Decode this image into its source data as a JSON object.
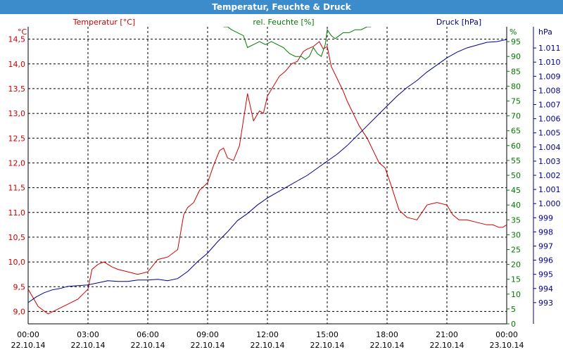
{
  "window": {
    "title": "Temperatur, Feuchte & Druck"
  },
  "colors": {
    "temperature": "#cc0000",
    "humidity": "#007a00",
    "pressure": "#00008c",
    "title_bar": "#3c8ccc"
  },
  "chart_data": {
    "type": "line",
    "grid": true,
    "x_tick_labels": [
      [
        "00:00",
        "22.10.14"
      ],
      [
        "03:00",
        "22.10.14"
      ],
      [
        "06:00",
        "22.10.14"
      ],
      [
        "09:00",
        "22.10.14"
      ],
      [
        "12:00",
        "22.10.14"
      ],
      [
        "15:00",
        "22.10.14"
      ],
      [
        "18:00",
        "22.10.14"
      ],
      [
        "21:00",
        "22.10.14"
      ],
      [
        "00:00",
        "23.10.14"
      ]
    ],
    "x_range_hours": [
      0,
      24
    ],
    "axes": {
      "temperature": {
        "label": "Temperatur [°C]",
        "unit": "°C",
        "ylim": [
          8.75,
          14.75
        ],
        "ticks": [
          "9,0",
          "9,5",
          "10,0",
          "10,5",
          "11,0",
          "11,5",
          "12,0",
          "12,5",
          "13,0",
          "13,5",
          "14,0",
          "14,5"
        ],
        "tick_values": [
          9.0,
          9.5,
          10.0,
          10.5,
          11.0,
          11.5,
          12.0,
          12.5,
          13.0,
          13.5,
          14.0,
          14.5
        ]
      },
      "humidity": {
        "label": "rel. Feuchte [%]",
        "unit": "%",
        "ylim": [
          0,
          100
        ],
        "ticks": [
          "0",
          "5",
          "10",
          "15",
          "20",
          "25",
          "30",
          "35",
          "40",
          "45",
          "50",
          "55",
          "60",
          "65",
          "70",
          "75",
          "80",
          "85",
          "90",
          "95"
        ],
        "tick_values": [
          0,
          5,
          10,
          15,
          20,
          25,
          30,
          35,
          40,
          45,
          50,
          55,
          60,
          65,
          70,
          75,
          80,
          85,
          90,
          95
        ]
      },
      "pressure": {
        "label": "Druck [hPa]",
        "unit": "hPa",
        "ylim": [
          991.5,
          1012.5
        ],
        "ticks": [
          "993",
          "994",
          "995",
          "996",
          "997",
          "998",
          "999",
          "1.000",
          "1.001",
          "1.002",
          "1.003",
          "1.004",
          "1.005",
          "1.006",
          "1.007",
          "1.008",
          "1.009",
          "1.010",
          "1.011"
        ],
        "tick_values": [
          993,
          994,
          995,
          996,
          997,
          998,
          999,
          1000,
          1001,
          1002,
          1003,
          1004,
          1005,
          1006,
          1007,
          1008,
          1009,
          1010,
          1011
        ]
      }
    },
    "series": [
      {
        "name": "Temperatur [°C]",
        "axis": "temperature",
        "x": [
          0,
          0.5,
          1,
          1.5,
          2,
          2.5,
          3,
          3.2,
          3.5,
          3.8,
          4,
          4.2,
          4.5,
          5,
          5.5,
          6,
          6.5,
          7,
          7.5,
          7.8,
          8,
          8.3,
          8.6,
          9,
          9.3,
          9.6,
          9.8,
          10,
          10.3,
          10.6,
          11,
          11.3,
          11.6,
          11.8,
          12,
          12.3,
          12.6,
          12.9,
          13.2,
          13.5,
          13.8,
          14,
          14.3,
          14.6,
          14.8,
          15,
          15.2,
          15.5,
          15.8,
          16,
          16.3,
          16.6,
          17,
          17.3,
          17.6,
          17.9,
          18.2,
          18.6,
          19,
          19.5,
          20,
          20.5,
          21,
          21.3,
          21.6,
          22,
          22.5,
          23,
          23.3,
          23.6,
          23.8,
          24
        ],
        "values": [
          9.45,
          9.1,
          8.95,
          9.05,
          9.15,
          9.25,
          9.45,
          9.85,
          9.95,
          10.0,
          9.95,
          9.9,
          9.85,
          9.8,
          9.75,
          9.8,
          10.05,
          10.1,
          10.25,
          10.95,
          11.1,
          11.2,
          11.45,
          11.6,
          11.95,
          12.25,
          12.3,
          12.1,
          12.05,
          12.35,
          13.4,
          12.85,
          13.05,
          13.0,
          13.35,
          13.55,
          13.75,
          13.85,
          14.0,
          14.05,
          14.25,
          14.3,
          14.35,
          14.45,
          14.3,
          14.35,
          13.95,
          13.7,
          13.45,
          13.25,
          13.0,
          12.75,
          12.5,
          12.25,
          12.0,
          11.9,
          11.55,
          11.05,
          10.9,
          10.85,
          11.15,
          11.2,
          11.15,
          10.95,
          10.85,
          10.85,
          10.8,
          10.75,
          10.75,
          10.7,
          10.7,
          10.75
        ]
      },
      {
        "name": "rel. Feuchte [%]",
        "axis": "humidity",
        "x": [
          9.8,
          10,
          10.2,
          10.5,
          10.8,
          11,
          11.3,
          11.6,
          11.9,
          12.2,
          12.5,
          12.8,
          13.1,
          13.4,
          13.7,
          13.9,
          14.1,
          14.3,
          14.5,
          14.7,
          14.9,
          15,
          15.2,
          15.4,
          15.6,
          15.8,
          16.1,
          16.4,
          16.7,
          17,
          17.2
        ],
        "values": [
          100,
          100,
          99,
          98,
          97,
          93,
          94,
          95,
          94,
          95,
          94,
          93,
          91,
          90,
          90,
          89,
          90,
          93,
          91,
          90,
          94,
          99,
          97,
          96,
          97,
          98,
          98,
          99,
          99,
          100,
          100
        ]
      },
      {
        "name": "Druck [hPa]",
        "axis": "pressure",
        "x": [
          0,
          0.4,
          0.8,
          1.2,
          1.6,
          2,
          2.5,
          3,
          3.5,
          4,
          4.5,
          5,
          5.5,
          6,
          6.5,
          7,
          7.5,
          8,
          8.5,
          9,
          9.5,
          10,
          10.5,
          11,
          11.5,
          12,
          12.5,
          13,
          13.5,
          14,
          14.5,
          15,
          15.5,
          16,
          16.5,
          17,
          17.5,
          18,
          18.5,
          19,
          19.5,
          20,
          20.5,
          21,
          21.5,
          22,
          22.5,
          23,
          23.5,
          24
        ],
        "values": [
          993.0,
          993.4,
          993.7,
          993.9,
          994.0,
          994.15,
          994.2,
          994.25,
          994.4,
          994.55,
          994.5,
          994.5,
          994.6,
          994.6,
          994.65,
          994.55,
          994.7,
          995.2,
          995.9,
          996.5,
          997.3,
          998.0,
          998.8,
          999.3,
          999.9,
          1000.4,
          1000.8,
          1001.2,
          1001.6,
          1002.0,
          1002.5,
          1003.0,
          1003.5,
          1004.1,
          1004.8,
          1005.5,
          1006.2,
          1006.9,
          1007.6,
          1008.2,
          1008.7,
          1009.3,
          1009.8,
          1010.3,
          1010.7,
          1011.0,
          1011.2,
          1011.4,
          1011.45,
          1011.6
        ]
      }
    ]
  }
}
